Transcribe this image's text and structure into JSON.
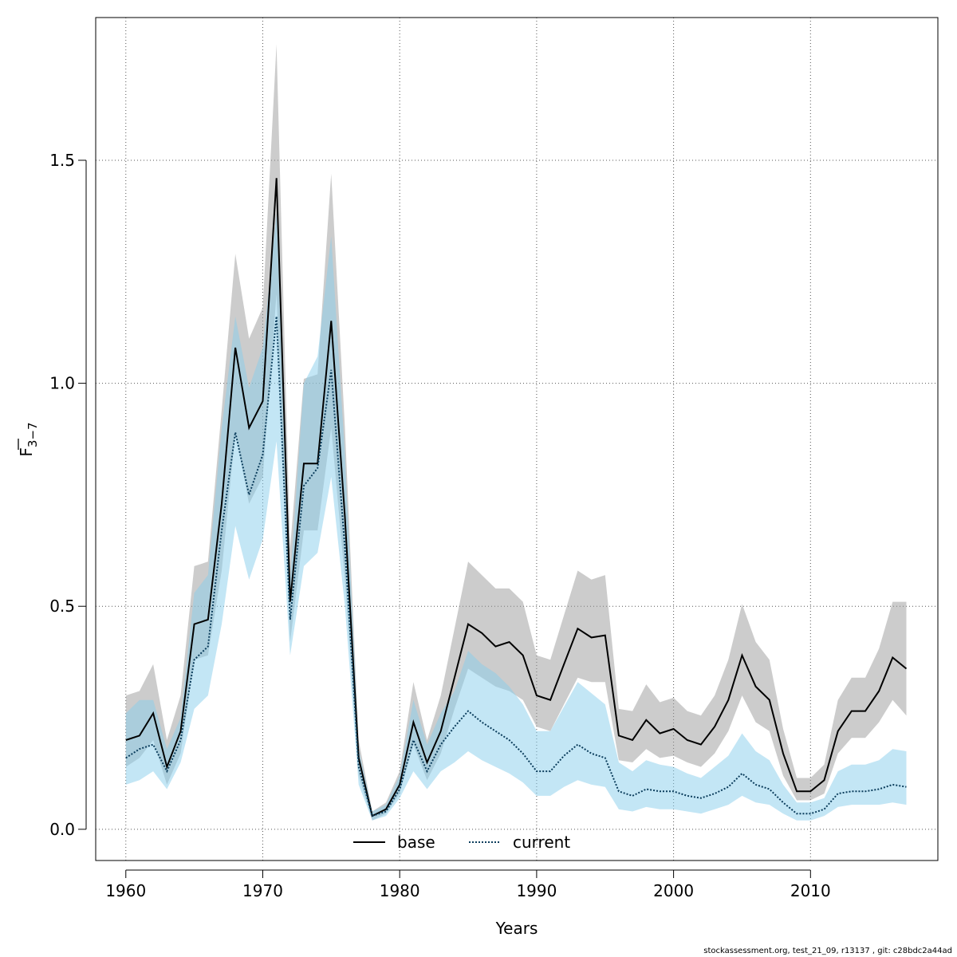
{
  "chart_data": {
    "type": "line",
    "xlabel": "Years",
    "ylabel_main": "F",
    "ylabel_sub": "3−7",
    "xlim": [
      1957.8,
      2019.3
    ],
    "ylim": [
      -0.07,
      1.82
    ],
    "xticks": [
      1960,
      1970,
      1980,
      1990,
      2000,
      2010
    ],
    "yticks": [
      0.0,
      0.5,
      1.0,
      1.5
    ],
    "ytick_labels": [
      "0.0",
      "0.5",
      "1.0",
      "1.5"
    ],
    "grid": true,
    "legend_position": "bottom-center",
    "x": [
      1960,
      1961,
      1962,
      1963,
      1964,
      1965,
      1966,
      1967,
      1968,
      1969,
      1970,
      1971,
      1972,
      1973,
      1974,
      1975,
      1976,
      1977,
      1978,
      1979,
      1980,
      1981,
      1982,
      1983,
      1984,
      1985,
      1986,
      1987,
      1988,
      1989,
      1990,
      1991,
      1992,
      1993,
      1994,
      1995,
      1996,
      1997,
      1998,
      1999,
      2000,
      2001,
      2002,
      2003,
      2004,
      2005,
      2006,
      2007,
      2008,
      2009,
      2010,
      2011,
      2012,
      2013,
      2014,
      2015,
      2016,
      2017
    ],
    "series": [
      {
        "name": "base",
        "line_color": "#000000",
        "band_color": "#999999",
        "style": "solid",
        "values": [
          0.2,
          0.21,
          0.26,
          0.14,
          0.22,
          0.46,
          0.47,
          0.73,
          1.08,
          0.9,
          0.96,
          1.46,
          0.51,
          0.82,
          0.82,
          1.14,
          0.7,
          0.16,
          0.03,
          0.045,
          0.1,
          0.24,
          0.15,
          0.22,
          0.34,
          0.46,
          0.44,
          0.41,
          0.42,
          0.39,
          0.3,
          0.29,
          0.37,
          0.45,
          0.43,
          0.435,
          0.21,
          0.2,
          0.245,
          0.215,
          0.225,
          0.2,
          0.19,
          0.23,
          0.29,
          0.39,
          0.32,
          0.29,
          0.17,
          0.085,
          0.085,
          0.11,
          0.22,
          0.265,
          0.265,
          0.31,
          0.385,
          0.36
        ],
        "lower": [
          0.14,
          0.16,
          0.2,
          0.1,
          0.17,
          0.38,
          0.39,
          0.58,
          0.89,
          0.73,
          0.79,
          1.2,
          0.42,
          0.67,
          0.67,
          0.9,
          0.56,
          0.12,
          0.02,
          0.035,
          0.08,
          0.19,
          0.11,
          0.17,
          0.27,
          0.36,
          0.34,
          0.32,
          0.31,
          0.29,
          0.23,
          0.22,
          0.28,
          0.34,
          0.33,
          0.33,
          0.155,
          0.15,
          0.18,
          0.16,
          0.165,
          0.15,
          0.14,
          0.17,
          0.22,
          0.3,
          0.24,
          0.22,
          0.12,
          0.065,
          0.065,
          0.08,
          0.17,
          0.205,
          0.205,
          0.24,
          0.29,
          0.255
        ],
        "upper": [
          0.3,
          0.31,
          0.37,
          0.2,
          0.3,
          0.59,
          0.6,
          0.94,
          1.29,
          1.1,
          1.17,
          1.76,
          0.63,
          1.01,
          1.02,
          1.47,
          0.9,
          0.2,
          0.04,
          0.06,
          0.13,
          0.33,
          0.2,
          0.3,
          0.45,
          0.6,
          0.57,
          0.54,
          0.54,
          0.51,
          0.39,
          0.38,
          0.48,
          0.58,
          0.56,
          0.57,
          0.27,
          0.265,
          0.325,
          0.285,
          0.295,
          0.265,
          0.255,
          0.3,
          0.38,
          0.505,
          0.42,
          0.38,
          0.225,
          0.115,
          0.115,
          0.145,
          0.29,
          0.34,
          0.34,
          0.405,
          0.51,
          0.51
        ]
      },
      {
        "name": "current",
        "line_color": "#0b3d5c",
        "band_color": "#87ceeb",
        "style": "dotted",
        "values": [
          0.16,
          0.18,
          0.19,
          0.13,
          0.2,
          0.38,
          0.41,
          0.67,
          0.89,
          0.75,
          0.84,
          1.15,
          0.47,
          0.77,
          0.81,
          1.03,
          0.63,
          0.14,
          0.03,
          0.04,
          0.09,
          0.2,
          0.13,
          0.19,
          0.23,
          0.265,
          0.24,
          0.22,
          0.2,
          0.17,
          0.13,
          0.13,
          0.165,
          0.19,
          0.17,
          0.16,
          0.085,
          0.075,
          0.09,
          0.085,
          0.085,
          0.075,
          0.07,
          0.08,
          0.095,
          0.125,
          0.1,
          0.09,
          0.06,
          0.035,
          0.035,
          0.045,
          0.08,
          0.085,
          0.085,
          0.09,
          0.1,
          0.095
        ],
        "lower": [
          0.1,
          0.11,
          0.13,
          0.09,
          0.15,
          0.27,
          0.3,
          0.46,
          0.68,
          0.56,
          0.65,
          0.87,
          0.39,
          0.59,
          0.62,
          0.79,
          0.5,
          0.1,
          0.02,
          0.03,
          0.07,
          0.13,
          0.09,
          0.13,
          0.15,
          0.175,
          0.155,
          0.14,
          0.125,
          0.105,
          0.075,
          0.075,
          0.095,
          0.11,
          0.1,
          0.095,
          0.045,
          0.04,
          0.05,
          0.045,
          0.045,
          0.04,
          0.035,
          0.045,
          0.055,
          0.075,
          0.06,
          0.055,
          0.035,
          0.02,
          0.02,
          0.03,
          0.05,
          0.055,
          0.055,
          0.055,
          0.06,
          0.055
        ],
        "upper": [
          0.26,
          0.29,
          0.29,
          0.18,
          0.25,
          0.53,
          0.57,
          0.9,
          1.15,
          0.99,
          1.08,
          1.38,
          0.56,
          1.0,
          1.06,
          1.33,
          0.84,
          0.18,
          0.04,
          0.055,
          0.12,
          0.29,
          0.19,
          0.26,
          0.31,
          0.4,
          0.37,
          0.35,
          0.32,
          0.28,
          0.22,
          0.22,
          0.275,
          0.33,
          0.305,
          0.28,
          0.15,
          0.13,
          0.155,
          0.145,
          0.14,
          0.125,
          0.115,
          0.14,
          0.165,
          0.215,
          0.175,
          0.155,
          0.1,
          0.06,
          0.06,
          0.07,
          0.13,
          0.145,
          0.145,
          0.155,
          0.18,
          0.175
        ]
      }
    ]
  },
  "footer_text": "stockassessment.org, test_21_09, r13137 , git: c28bdc2a44ad"
}
